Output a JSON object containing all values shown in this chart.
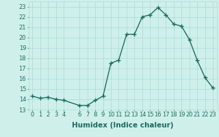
{
  "x": [
    0,
    1,
    2,
    3,
    4,
    6,
    7,
    8,
    9,
    10,
    11,
    12,
    13,
    14,
    15,
    16,
    17,
    18,
    19,
    20,
    21,
    22,
    23
  ],
  "y": [
    14.3,
    14.1,
    14.2,
    14.0,
    13.9,
    13.4,
    13.4,
    13.9,
    14.3,
    17.5,
    17.8,
    20.3,
    20.3,
    22.0,
    22.2,
    22.9,
    22.2,
    21.3,
    21.1,
    19.8,
    17.8,
    16.1,
    15.1
  ],
  "line_color": "#1a6b5a",
  "marker": "+",
  "marker_size": 4,
  "marker_lw": 1.0,
  "line_width": 1.0,
  "xlabel": "Humidex (Indice chaleur)",
  "xlim": [
    -0.5,
    23.5
  ],
  "ylim": [
    13,
    23.5
  ],
  "yticks": [
    13,
    14,
    15,
    16,
    17,
    18,
    19,
    20,
    21,
    22,
    23
  ],
  "xticks": [
    0,
    1,
    2,
    3,
    4,
    6,
    7,
    8,
    9,
    10,
    11,
    12,
    13,
    14,
    15,
    16,
    17,
    18,
    19,
    20,
    21,
    22,
    23
  ],
  "xtick_labels": [
    "0",
    "1",
    "2",
    "3",
    "4",
    "6",
    "7",
    "8",
    "9",
    "10",
    "11",
    "12",
    "13",
    "14",
    "15",
    "16",
    "17",
    "18",
    "19",
    "20",
    "21",
    "22",
    "23"
  ],
  "bg_color": "#cff0ea",
  "grid_color": "#aedcd6",
  "font_color": "#1a6b5a",
  "tick_fontsize": 6.0,
  "xlabel_fontsize": 7.5
}
